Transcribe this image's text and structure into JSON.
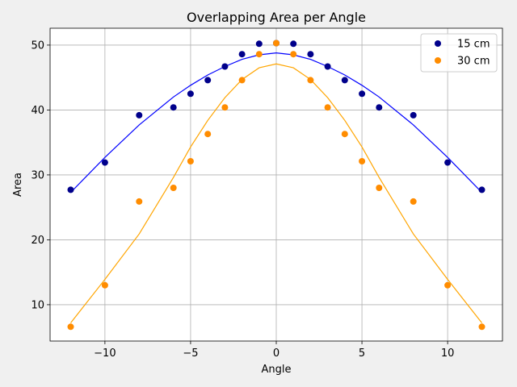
{
  "chart_data": {
    "type": "scatter",
    "title": "Overlapping Area per Angle",
    "xlabel": "Angle",
    "ylabel": "Area",
    "xlim": [
      -13.2,
      13.2
    ],
    "ylim": [
      4.4,
      52.6
    ],
    "xticks": [
      -10,
      -5,
      0,
      5,
      10
    ],
    "xtick_labels": [
      "−10",
      "−5",
      "0",
      "5",
      "10"
    ],
    "yticks": [
      10,
      20,
      30,
      40,
      50
    ],
    "yticks_labels": [
      "10",
      "20",
      "30",
      "40",
      "50"
    ],
    "grid": true,
    "legend_position": "top-right",
    "x": [
      -12,
      -10,
      -8,
      -6,
      -5,
      -4,
      -3,
      -2,
      -1,
      0,
      1,
      2,
      3,
      4,
      5,
      6,
      8,
      10,
      12
    ],
    "series": [
      {
        "name": "15 cm",
        "color": "#00008b",
        "fit_color": "#0000ff",
        "points": [
          27.7,
          31.9,
          39.2,
          40.4,
          42.5,
          44.6,
          46.7,
          48.6,
          50.2,
          50.3,
          50.2,
          48.6,
          46.7,
          44.6,
          42.5,
          40.4,
          39.2,
          31.9,
          27.7
        ],
        "fit": [
          27.3,
          32.7,
          37.7,
          42.0,
          43.8,
          45.4,
          46.7,
          47.8,
          48.5,
          48.8,
          48.5,
          47.8,
          46.7,
          45.4,
          43.8,
          42.0,
          37.7,
          32.7,
          27.3
        ]
      },
      {
        "name": "30 cm",
        "color": "#ff8c00",
        "fit_color": "#ffa500",
        "points": [
          6.6,
          13.0,
          25.9,
          28.0,
          32.1,
          36.3,
          40.4,
          44.6,
          48.6,
          50.3,
          48.6,
          44.6,
          40.4,
          36.3,
          32.1,
          28.0,
          25.9,
          13.0,
          6.6
        ],
        "fit": [
          7.2,
          13.9,
          20.9,
          29.6,
          34.3,
          38.4,
          41.9,
          44.7,
          46.5,
          47.1,
          46.5,
          44.7,
          41.9,
          38.4,
          34.3,
          29.6,
          20.9,
          13.9,
          7.2
        ]
      }
    ]
  }
}
